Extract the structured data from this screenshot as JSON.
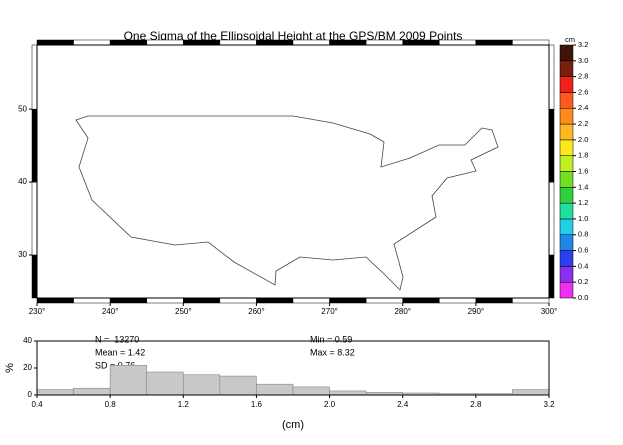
{
  "chart_data": [
    {
      "type": "map",
      "title": "One Sigma of the Ellipsoidal Height at the GPS/BM 2009 Points",
      "xlim": [
        230,
        300
      ],
      "xticks": [
        {
          "value": 230,
          "label": "230°"
        },
        {
          "value": 240,
          "label": "240°"
        },
        {
          "value": 250,
          "label": "250°"
        },
        {
          "value": 260,
          "label": "260°"
        },
        {
          "value": 270,
          "label": "270°"
        },
        {
          "value": 280,
          "label": "280°"
        },
        {
          "value": 290,
          "label": "290°"
        },
        {
          "value": 300,
          "label": "300°"
        }
      ],
      "ylim": [
        24.1,
        58.8
      ],
      "yticks": [
        30,
        40,
        50
      ],
      "colorbar": {
        "label": "cm",
        "ticks": [
          {
            "value": 0,
            "label": "0.0"
          },
          0.2,
          0.4,
          0.6,
          0.8,
          {
            "value": 1,
            "label": "1.0"
          },
          1.2,
          1.4,
          1.6,
          1.8,
          {
            "value": 2,
            "label": "2.0"
          },
          2.2,
          2.4,
          2.6,
          2.8,
          {
            "value": 3,
            "label": "3.0"
          },
          3.2
        ],
        "colors": [
          "#f030f0",
          "#8a30f0",
          "#2a40f0",
          "#1e88e8",
          "#20d0e8",
          "#20e0a0",
          "#30d040",
          "#70e020",
          "#c0f020",
          "#ffe81a",
          "#ffb81f",
          "#ff8c1a",
          "#ff5a1a",
          "#f0201a",
          "#7a1f10",
          "#3d1408"
        ]
      }
    },
    {
      "type": "histogram",
      "bins": [
        0.4,
        0.6,
        0.8,
        1.0,
        1.2,
        1.4,
        1.6,
        1.8,
        2.0,
        2.2,
        2.4,
        2.6,
        2.8,
        3.0,
        3.2
      ],
      "values": [
        4,
        5,
        22,
        17,
        15,
        14,
        8,
        6,
        3,
        2,
        1.5,
        1,
        1,
        4
      ],
      "color": "#c8c8c8",
      "xlim": [
        0.4,
        3.2
      ],
      "xticks": [
        0.4,
        0.8,
        1.2,
        1.6,
        {
          "value": 2,
          "label": "2.0"
        },
        2.4,
        2.8,
        3.2
      ],
      "ylim": [
        0,
        40
      ],
      "yticks": [
        0,
        20,
        40
      ],
      "ylabel": "%",
      "xlabel": "(cm)",
      "annotations": [
        "N =  13270",
        "Mean = 1.42",
        "SD = 0.76",
        "Min = 0.59",
        "Max = 8.32"
      ]
    }
  ]
}
